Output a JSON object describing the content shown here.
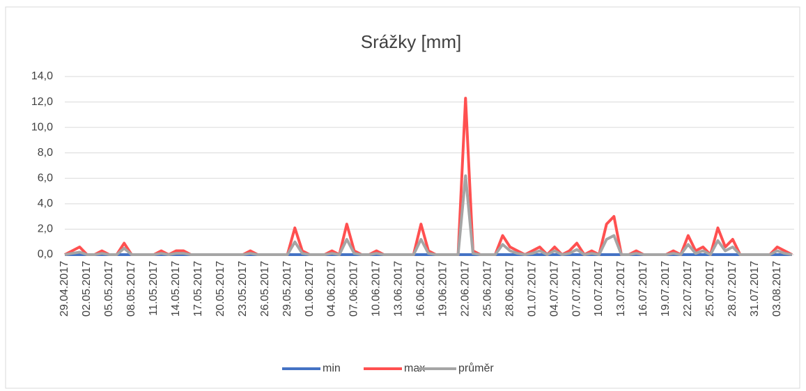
{
  "chart_data": {
    "type": "line",
    "title": "Srážky [mm]",
    "categories": [
      "29.04.2017",
      null,
      null,
      "02.05.2017",
      null,
      null,
      "05.05.2017",
      null,
      null,
      "08.05.2017",
      null,
      null,
      "11.05.2017",
      null,
      null,
      "14.05.2017",
      null,
      null,
      "17.05.2017",
      null,
      null,
      "20.05.2017",
      null,
      null,
      "23.05.2017",
      null,
      null,
      "26.05.2017",
      null,
      null,
      "29.05.2017",
      null,
      null,
      "01.06.2017",
      null,
      null,
      "04.06.2017",
      null,
      null,
      "07.06.2017",
      null,
      null,
      "10.06.2017",
      null,
      null,
      "13.06.2017",
      null,
      null,
      "16.06.2017",
      null,
      null,
      "19.06.2017",
      null,
      null,
      "22.06.2017",
      null,
      null,
      "25.06.2017",
      null,
      null,
      "28.06.2017",
      null,
      null,
      "01.07.2017",
      null,
      null,
      "04.07.2017",
      null,
      null,
      "07.07.2017",
      null,
      null,
      "10.07.2017",
      null,
      null,
      "13.07.2017",
      null,
      null,
      "16.07.2017",
      null,
      null,
      "19.07.2017",
      null,
      null,
      "22.07.2017",
      null,
      null,
      "25.07.2017",
      null,
      null,
      "28.07.2017",
      null,
      null,
      "31.07.2017",
      null,
      null,
      "03.08.2017",
      null,
      null
    ],
    "series": [
      {
        "name": "min",
        "color": "#4472c4",
        "values": [
          0,
          0,
          0,
          0,
          0,
          0,
          0,
          0,
          0,
          0,
          0,
          0,
          0,
          0,
          0,
          0,
          0,
          0,
          0,
          0,
          0,
          0,
          0,
          0,
          0,
          0,
          0,
          0,
          0,
          0,
          0,
          0,
          0,
          0,
          0,
          0,
          0,
          0,
          0,
          0,
          0,
          0,
          0,
          0,
          0,
          0,
          0,
          0,
          0,
          0,
          0,
          0,
          0,
          0,
          0,
          0,
          0,
          0,
          0,
          0,
          0,
          0,
          0,
          0,
          0,
          0,
          0,
          0,
          0,
          0,
          0,
          0,
          0,
          0,
          0,
          0,
          0,
          0,
          0,
          0,
          0,
          0,
          0,
          0,
          0,
          0,
          0,
          0,
          0,
          0,
          0,
          0,
          0,
          0,
          0,
          0,
          0,
          0,
          0
        ]
      },
      {
        "name": "max",
        "color": "#ff5050",
        "values": [
          0,
          0.3,
          0.6,
          0,
          0,
          0.3,
          0,
          0,
          0.9,
          0,
          0,
          0,
          0,
          0.3,
          0,
          0.3,
          0.3,
          0,
          0,
          0,
          0,
          0,
          0,
          0,
          0,
          0.3,
          0,
          0,
          0,
          0,
          0,
          2.1,
          0.3,
          0,
          0,
          0,
          0.3,
          0,
          2.4,
          0.3,
          0,
          0,
          0.3,
          0,
          0,
          0,
          0,
          0,
          2.4,
          0.3,
          0,
          0,
          0,
          0,
          12.3,
          0.3,
          0,
          0,
          0,
          1.5,
          0.6,
          0.3,
          0,
          0.3,
          0.6,
          0,
          0.6,
          0,
          0.3,
          0.9,
          0,
          0.3,
          0,
          2.4,
          3.0,
          0,
          0,
          0.3,
          0,
          0,
          0,
          0,
          0.3,
          0,
          1.5,
          0.3,
          0.6,
          0,
          2.1,
          0.6,
          1.2,
          0,
          0,
          0,
          0,
          0,
          0.6,
          0.3,
          0
        ]
      },
      {
        "name": "průměr",
        "color": "#a5a5a5",
        "values": [
          0,
          0.1,
          0.2,
          0,
          0,
          0.1,
          0,
          0,
          0.5,
          0,
          0,
          0,
          0,
          0.1,
          0,
          0.1,
          0.1,
          0,
          0,
          0,
          0,
          0,
          0,
          0,
          0,
          0.1,
          0,
          0,
          0,
          0,
          0,
          1.0,
          0.1,
          0,
          0,
          0,
          0.1,
          0,
          1.2,
          0.1,
          0,
          0,
          0.1,
          0,
          0,
          0,
          0,
          0,
          1.2,
          0.1,
          0,
          0,
          0,
          0,
          6.2,
          0.1,
          0,
          0,
          0,
          0.8,
          0.3,
          0.1,
          0,
          0.1,
          0.3,
          0,
          0.3,
          0,
          0.1,
          0.4,
          0,
          0.1,
          0,
          1.2,
          1.5,
          0,
          0,
          0.1,
          0,
          0,
          0,
          0,
          0.1,
          0,
          0.8,
          0.1,
          0.3,
          0,
          1.1,
          0.3,
          0.6,
          0,
          0,
          0,
          0,
          0,
          0.3,
          0.1,
          0
        ]
      }
    ],
    "ylim": [
      0,
      14
    ],
    "yticks": [
      {
        "value": 0,
        "label": "0,0"
      },
      {
        "value": 2,
        "label": "2,0"
      },
      {
        "value": 4,
        "label": "4,0"
      },
      {
        "value": 6,
        "label": "6,0"
      },
      {
        "value": 8,
        "label": "8,0"
      },
      {
        "value": 10,
        "label": "10,0"
      },
      {
        "value": 12,
        "label": "12,0"
      },
      {
        "value": 14,
        "label": "14,0"
      }
    ],
    "grid": true,
    "legend": "bottom"
  }
}
